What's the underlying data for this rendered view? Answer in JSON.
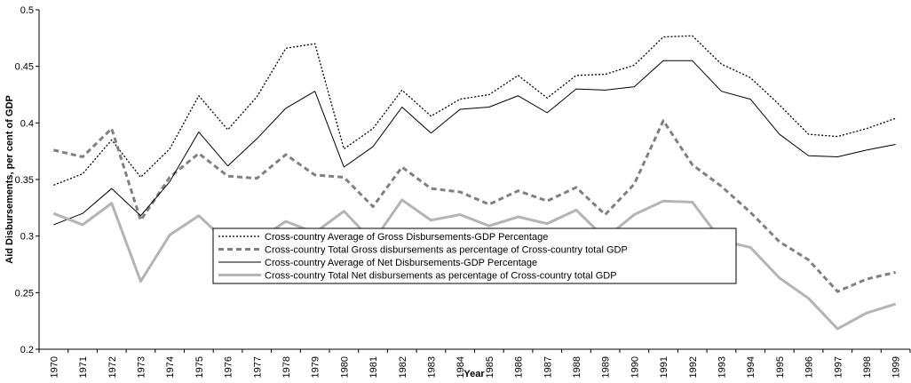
{
  "chart_data": {
    "type": "line",
    "y_label": "Aid Disbursements, per cent of GDP",
    "x_label": "Year",
    "categories": [
      "1970",
      "1971",
      "1972",
      "1973",
      "1974",
      "1975",
      "1976",
      "1977",
      "1978",
      "1979",
      "1980",
      "1981",
      "1982",
      "1983",
      "1984",
      "1985",
      "1986",
      "1987",
      "1988",
      "1989",
      "1990",
      "1991",
      "1992",
      "1993",
      "1994",
      "1995",
      "1996",
      "1997",
      "1998",
      "1999"
    ],
    "ylim": [
      0.2,
      0.5
    ],
    "yticks": [
      0.2,
      0.25,
      0.3,
      0.35,
      0.4,
      0.45,
      0.5
    ],
    "grid": false,
    "legend": "bottom-center",
    "series": [
      {
        "name": "Cross-country Average of Gross Disbursements-GDP Percentage",
        "color": "#000000",
        "line_style": "dotted",
        "line_width": 1.3,
        "values": [
          0.345,
          0.355,
          0.385,
          0.352,
          0.377,
          0.424,
          0.394,
          0.423,
          0.466,
          0.47,
          0.377,
          0.395,
          0.429,
          0.406,
          0.421,
          0.425,
          0.442,
          0.422,
          0.442,
          0.443,
          0.451,
          0.476,
          0.477,
          0.452,
          0.44,
          0.416,
          0.39,
          0.388,
          0.395,
          0.404
        ]
      },
      {
        "name": "Cross-country Total Gross disbursements as percentage of Cross-country total GDP",
        "color": "#808080",
        "line_style": "dashed",
        "line_width": 3,
        "values": [
          0.376,
          0.37,
          0.395,
          0.314,
          0.352,
          0.373,
          0.353,
          0.351,
          0.372,
          0.354,
          0.352,
          0.326,
          0.361,
          0.342,
          0.339,
          0.328,
          0.34,
          0.331,
          0.343,
          0.319,
          0.346,
          0.402,
          0.363,
          0.344,
          0.321,
          0.295,
          0.279,
          0.251,
          0.262,
          0.268
        ]
      },
      {
        "name": "Cross-country Average of Net Disbursements-GDP Percentage",
        "color": "#000000",
        "line_style": "solid",
        "line_width": 1,
        "values": [
          0.31,
          0.32,
          0.342,
          0.318,
          0.348,
          0.392,
          0.362,
          0.386,
          0.413,
          0.428,
          0.361,
          0.379,
          0.414,
          0.391,
          0.412,
          0.414,
          0.424,
          0.409,
          0.43,
          0.429,
          0.432,
          0.455,
          0.455,
          0.428,
          0.421,
          0.39,
          0.371,
          0.37,
          0.376,
          0.381
        ]
      },
      {
        "name": "Cross-country Total Net disbursements as percentage of Cross-country total GDP",
        "color": "#b4b4b4",
        "line_style": "solid",
        "line_width": 3,
        "values": [
          0.32,
          0.31,
          0.329,
          0.26,
          0.301,
          0.318,
          0.294,
          0.296,
          0.313,
          0.303,
          0.322,
          0.295,
          0.332,
          0.314,
          0.319,
          0.309,
          0.317,
          0.311,
          0.323,
          0.298,
          0.319,
          0.331,
          0.33,
          0.296,
          0.29,
          0.263,
          0.245,
          0.218,
          0.232,
          0.24
        ]
      }
    ]
  }
}
